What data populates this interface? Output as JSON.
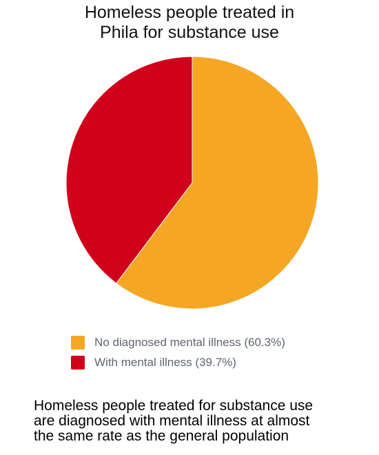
{
  "title": {
    "line1": "Homeless people treated in",
    "line2": "Phila for substance use"
  },
  "chart_data": {
    "type": "pie",
    "title": "Homeless people treated in Phila for substance use",
    "slices": [
      {
        "name": "No diagnosed mental illness",
        "value": 60.3,
        "color": "#F5A623"
      },
      {
        "name": "With mental illness",
        "value": 39.7,
        "color": "#D0021B"
      }
    ],
    "legend_position": "bottom",
    "legend": [
      "No diagnosed mental illness (60.3%)",
      "With mental illness (39.7%)"
    ]
  },
  "caption": {
    "line1": "Homeless people treated for substance use",
    "line2": "are diagnosed with mental illness at almost",
    "line3": "the same rate as the general population"
  }
}
